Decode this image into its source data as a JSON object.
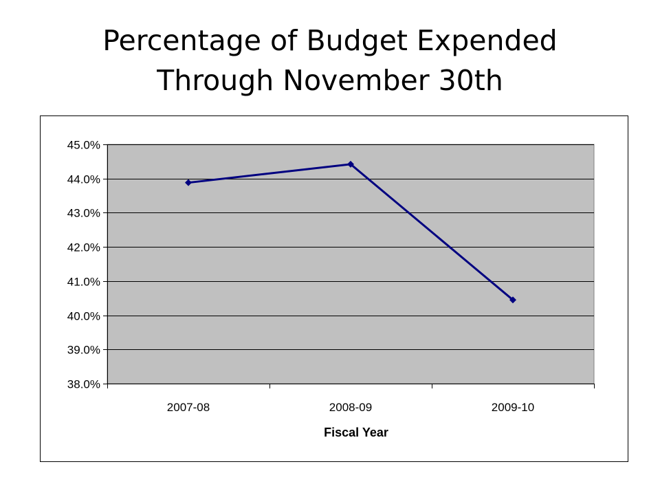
{
  "slide": {
    "title_line1": "Percentage of Budget Expended",
    "title_line2": "Through November 30th"
  },
  "chart_data": {
    "type": "line",
    "title": "Percentage of Budget Expended Through November 30th",
    "xlabel": "Fiscal Year",
    "ylabel": "",
    "categories": [
      "2007-08",
      "2008-09",
      "2009-10"
    ],
    "series": [
      {
        "values": [
          43.88,
          44.42,
          40.45
        ]
      }
    ],
    "ylim": [
      38.0,
      45.0
    ],
    "y_ticks": [
      38.0,
      39.0,
      40.0,
      41.0,
      42.0,
      43.0,
      44.0,
      45.0
    ],
    "y_tick_labels": [
      "38.0%",
      "39.0%",
      "40.0%",
      "41.0%",
      "42.0%",
      "43.0%",
      "44.0%",
      "45.0%"
    ],
    "grid": true,
    "legend": "none",
    "colors": {
      "line": "#000080",
      "plot_background": "#c0c0c0",
      "gridline": "#000000"
    }
  }
}
